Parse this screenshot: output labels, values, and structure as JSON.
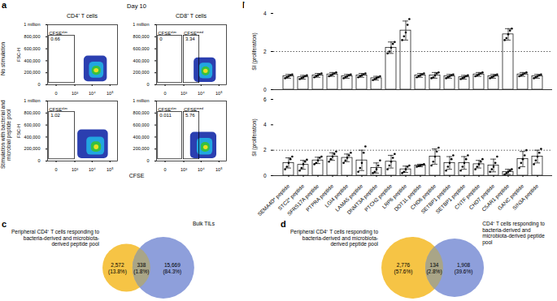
{
  "chart_data": [
    {
      "type": "flow",
      "panel": "a",
      "title": "Day 10",
      "columns": [
        "CD4⁺ T cells",
        "CD8⁺ T cells"
      ],
      "rows": [
        "No stimulation",
        "Stimulation with bacterial and microbial peptide pool"
      ],
      "xlabel": "CFSE",
      "log": "x",
      "xlim": [
        -200,
        262144
      ],
      "xticks": [
        0,
        {
          "value": 1000,
          "label": "10³"
        },
        {
          "value": 10000,
          "label": "10⁴"
        },
        {
          "value": 100000,
          "label": "10⁵"
        }
      ],
      "ylim": [
        0,
        1000000
      ],
      "yticks": [
        0,
        {
          "value": 200000,
          "label": "200,000"
        },
        {
          "value": 400000,
          "label": "400,000"
        },
        {
          "value": 600000,
          "label": "600,000"
        },
        {
          "value": 800000,
          "label": "800,000"
        },
        {
          "value": 1000000,
          "label": "1 million"
        }
      ],
      "plots": [
        [
          {
            "ylabel": "FSC-H",
            "gates": [
              {
                "name": "CFSEᵈⁱᵐ",
                "value": 0.66,
                "x": [
                  -150,
                  1000
                ],
                "y": [
                  30000,
                  820000
                ]
              }
            ],
            "population": [
              {
                "x": [
                  3500,
                  70000
                ],
                "y": [
                  50000,
                  480000
                ],
                "color": "#2b3fb0"
              },
              {
                "x": [
                  7000,
                  45000
                ],
                "y": [
                  110000,
                  380000
                ],
                "color": "#22a6e0"
              },
              {
                "x": [
                  10000,
                  32000
                ],
                "y": [
                  160000,
                  310000
                ],
                "color": "#36c043"
              },
              {
                "x": [
                  13000,
                  24000
                ],
                "y": [
                  200000,
                  270000
                ],
                "color": "#e8e022"
              }
            ]
          },
          {
            "gates": [
              {
                "name": "CFSEᵈⁱᵐ",
                "value": 0,
                "x": [
                  -150,
                  800
                ],
                "y": [
                  30000,
                  820000
                ]
              },
              {
                "name": "CFSEᵐᵉᵈ",
                "value": 3.34,
                "x": [
                  1000,
                  8000
                ],
                "y": [
                  30000,
                  820000
                ]
              }
            ],
            "population": [
              {
                "x": [
                  4000,
                  70000
                ],
                "y": [
                  40000,
                  450000
                ],
                "color": "#2b3fb0"
              },
              {
                "x": [
                  8000,
                  45000
                ],
                "y": [
                  100000,
                  360000
                ],
                "color": "#22a6e0"
              },
              {
                "x": [
                  11000,
                  32000
                ],
                "y": [
                  150000,
                  300000
                ],
                "color": "#36c043"
              },
              {
                "x": [
                  14000,
                  25000
                ],
                "y": [
                  190000,
                  260000
                ],
                "color": "#e8e022"
              }
            ]
          }
        ],
        [
          {
            "ylabel": "FSC-H",
            "gates": [
              {
                "name": "CFSEᵈⁱᵐ",
                "value": 1.02,
                "x": [
                  -150,
                  1000
                ],
                "y": [
                  30000,
                  820000
                ]
              }
            ],
            "population": [
              {
                "x": [
                  1500,
                  80000
                ],
                "y": [
                  40000,
                  520000
                ],
                "color": "#2b3fb0"
              },
              {
                "x": [
                  5000,
                  50000
                ],
                "y": [
                  100000,
                  400000
                ],
                "color": "#22a6e0"
              },
              {
                "x": [
                  9000,
                  33000
                ],
                "y": [
                  150000,
                  320000
                ],
                "color": "#36c043"
              },
              {
                "x": [
                  13000,
                  24000
                ],
                "y": [
                  190000,
                  270000
                ],
                "color": "#e8e022"
              }
            ]
          },
          {
            "gates": [
              {
                "name": "CFSEᵈⁱᵐ",
                "value": 0.011,
                "x": [
                  -150,
                  800
                ],
                "y": [
                  30000,
                  820000
                ]
              },
              {
                "name": "CFSEᵐᵉᵈ",
                "value": 5.76,
                "x": [
                  1000,
                  8000
                ],
                "y": [
                  30000,
                  820000
                ]
              }
            ],
            "population": [
              {
                "x": [
                  2500,
                  75000
                ],
                "y": [
                  40000,
                  480000
                ],
                "color": "#2b3fb0"
              },
              {
                "x": [
                  6000,
                  45000
                ],
                "y": [
                  100000,
                  380000
                ],
                "color": "#22a6e0"
              },
              {
                "x": [
                  10000,
                  32000
                ],
                "y": [
                  150000,
                  310000
                ],
                "color": "#36c043"
              },
              {
                "x": [
                  14000,
                  25000
                ],
                "y": [
                  190000,
                  260000
                ],
                "color": "#e8e022"
              }
            ]
          }
        ]
      ]
    },
    {
      "type": "bar",
      "panel": "b",
      "ylabel": "SI (proliferation)",
      "threshold": 2,
      "color": "#ffffff",
      "marker": "circle",
      "categories": [
        "SEMA4D* peptide",
        "STC2* peptide",
        "SFRS17A peptide",
        "PTPRA peptide",
        "LGI4 peptide",
        "LAMA5 peptide",
        "DNMT3A peptide",
        "PTCH2 peptide",
        "LRP6 peptide",
        "DOT1L peptide",
        "CHD6 peptide",
        "SETBP1 peptide",
        "SETBP1 peptide",
        "CNTF peptide",
        "CHD7 peptide",
        "C5AR1 peptide",
        "GANC peptide",
        "SIN3A peptide"
      ],
      "subplots": [
        {
          "tick_labels": "y",
          "ylim": [
            0,
            4
          ],
          "yticks": [
            0,
            2,
            4
          ],
          "values": [
            0.7,
            0.65,
            0.75,
            0.8,
            0.7,
            0.75,
            0.6,
            2.2,
            3.1,
            0.75,
            0.75,
            0.7,
            0.65,
            0.8,
            0.7,
            2.9,
            0.8,
            0.7
          ],
          "errors": [
            0.1,
            0.1,
            0.1,
            0.1,
            0.1,
            0.1,
            0.1,
            0.3,
            0.5,
            0.1,
            0.15,
            0.1,
            0.1,
            0.1,
            0.1,
            0.3,
            0.1,
            0.1
          ],
          "points": [
            [
              0.6,
              0.65,
              0.7,
              0.75,
              0.8
            ],
            [
              0.55,
              0.6,
              0.65,
              0.7,
              0.75
            ],
            [
              0.65,
              0.7,
              0.75,
              0.8,
              0.85
            ],
            [
              0.7,
              0.75,
              0.8,
              0.85,
              0.9
            ],
            [
              0.6,
              0.65,
              0.7,
              0.75,
              0.8
            ],
            [
              0.65,
              0.7,
              0.75,
              0.8,
              0.85
            ],
            [
              0.5,
              0.55,
              0.6,
              0.65,
              0.7
            ],
            [
              1.9,
              2.0,
              2.2,
              2.4,
              2.5
            ],
            [
              2.6,
              2.8,
              3.0,
              3.4,
              3.7
            ],
            [
              0.65,
              0.7,
              0.75,
              0.8,
              0.85
            ],
            [
              0.6,
              0.65,
              0.75,
              0.85,
              0.9
            ],
            [
              0.6,
              0.65,
              0.7,
              0.75,
              0.8
            ],
            [
              0.55,
              0.6,
              0.65,
              0.7,
              0.75
            ],
            [
              0.7,
              0.75,
              0.8,
              0.85,
              0.9
            ],
            [
              0.6,
              0.65,
              0.7,
              0.75,
              0.8
            ],
            [
              2.6,
              2.7,
              2.9,
              3.1,
              3.2
            ],
            [
              0.7,
              0.75,
              0.8,
              0.85,
              0.9
            ],
            [
              0.6,
              0.65,
              0.7,
              0.75,
              0.8
            ]
          ]
        },
        {
          "ylim": [
            0,
            6
          ],
          "yticks": [
            0,
            2,
            4,
            6
          ],
          "values": [
            1.0,
            0.85,
            1.2,
            1.5,
            1.4,
            1.2,
            0.6,
            1.1,
            0.5,
            0.8,
            1.5,
            1.0,
            1.0,
            0.9,
            0.8,
            0.3,
            1.3,
            1.5
          ],
          "errors": [
            0.4,
            0.35,
            0.25,
            0.3,
            0.3,
            0.8,
            0.4,
            0.5,
            0.25,
            0.1,
            0.6,
            0.5,
            0.5,
            0.3,
            0.5,
            0.2,
            0.6,
            0.5
          ],
          "points": [
            [
              0.5,
              0.7,
              1.0,
              1.3,
              1.5
            ],
            [
              0.4,
              0.6,
              0.9,
              1.1,
              1.25
            ],
            [
              0.9,
              1.0,
              1.2,
              1.4,
              1.5
            ],
            [
              1.1,
              1.3,
              1.5,
              1.7,
              1.9
            ],
            [
              1.0,
              1.2,
              1.4,
              1.6,
              1.8
            ],
            [
              0.3,
              0.6,
              1.0,
              1.8,
              2.3
            ],
            [
              0.2,
              0.3,
              0.5,
              0.8,
              1.2
            ],
            [
              0.5,
              0.8,
              1.1,
              1.4,
              1.7
            ],
            [
              0.2,
              0.3,
              0.5,
              0.7,
              0.8
            ],
            [
              0.7,
              0.75,
              0.8,
              0.85,
              0.9
            ],
            [
              0.8,
              1.1,
              1.5,
              1.9,
              2.2
            ],
            [
              0.4,
              0.7,
              1.0,
              1.3,
              1.6
            ],
            [
              0.4,
              0.7,
              1.0,
              1.3,
              1.6
            ],
            [
              0.5,
              0.7,
              0.9,
              1.1,
              1.3
            ],
            [
              0.3,
              0.5,
              0.7,
              1.0,
              1.5
            ],
            [
              0.1,
              0.2,
              0.3,
              0.4,
              0.5
            ],
            [
              0.6,
              1.0,
              1.3,
              1.6,
              2.0
            ],
            [
              0.9,
              1.2,
              1.5,
              1.8,
              2.1
            ]
          ]
        }
      ]
    },
    {
      "type": "venn",
      "panel": "c",
      "sets": [
        {
          "name": "Peripheral CD4⁺ T cells responding to bacteria-derived and microbiota-derived peptide pool"
        },
        {
          "name": "Bulk TILs"
        }
      ],
      "colors": [
        "#f6c445",
        "#a9a587",
        "#8e9fdb"
      ],
      "values": [
        2572,
        338,
        15669
      ],
      "value_labels": [
        "2,572",
        "338",
        "15,669"
      ],
      "percent_labels": [
        "(13.8%)",
        "(1.8%)",
        "(84.3%)"
      ]
    },
    {
      "type": "venn",
      "panel": "d",
      "sets": [
        {
          "name": "Peripheral CD4⁺ T cells responding to bacteria-derived and microbiota-derived peptide pool"
        },
        {
          "name": "CD4⁺ T cells responding to bacteria-derived and microbiota-derived peptide pool"
        }
      ],
      "colors": [
        "#f6c445",
        "#a9a587",
        "#8e9fdb"
      ],
      "values": [
        2776,
        134,
        1908
      ],
      "value_labels": [
        "2,776",
        "134",
        "1,908"
      ],
      "percent_labels": [
        "(57.6%)",
        "(2.8%)",
        "(39.6%)"
      ]
    }
  ]
}
